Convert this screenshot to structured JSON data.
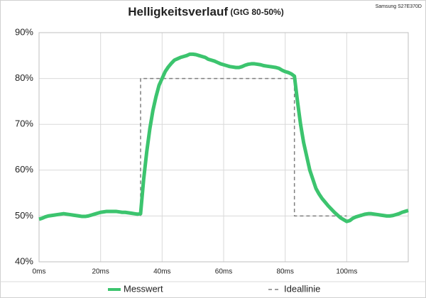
{
  "chart_data": {
    "type": "line",
    "title": "Helligkeitsverlauf",
    "title_suffix": "(GtG 80-50%)",
    "annotation": "Samsung S27E370D",
    "xlim": [
      0,
      120
    ],
    "xticks": [
      {
        "value": 0,
        "label": "0ms"
      },
      {
        "value": 20,
        "label": "20ms"
      },
      {
        "value": 40,
        "label": "40ms"
      },
      {
        "value": 60,
        "label": "60ms"
      },
      {
        "value": 80,
        "label": "80ms"
      },
      {
        "value": 100,
        "label": "100ms"
      }
    ],
    "ylim": [
      40,
      90
    ],
    "yticks": [
      {
        "value": 40,
        "label": "40%"
      },
      {
        "value": 50,
        "label": "50%"
      },
      {
        "value": 60,
        "label": "60%"
      },
      {
        "value": 70,
        "label": "70%"
      },
      {
        "value": 80,
        "label": "80%"
      },
      {
        "value": 90,
        "label": "90%"
      }
    ],
    "grid": true,
    "legend": "bottom",
    "series": [
      {
        "name": "Messwert",
        "color": "#3cc46e",
        "dashed": false,
        "x": [
          0,
          1,
          2,
          3,
          4,
          5,
          6,
          7,
          8,
          9,
          10,
          11,
          12,
          13,
          14,
          15,
          16,
          17,
          18,
          19,
          20,
          21,
          22,
          23,
          24,
          25,
          26,
          27,
          28,
          29,
          30,
          31,
          32,
          33,
          34,
          35,
          36,
          37,
          38,
          39,
          40,
          41,
          42,
          43,
          44,
          45,
          46,
          47,
          48,
          49,
          50,
          51,
          52,
          53,
          54,
          55,
          56,
          57,
          58,
          59,
          60,
          61,
          62,
          63,
          64,
          65,
          66,
          67,
          68,
          69,
          70,
          71,
          72,
          73,
          74,
          75,
          76,
          77,
          78,
          79,
          80,
          81,
          82,
          83,
          84,
          85,
          86,
          87,
          88,
          89,
          90,
          91,
          92,
          93,
          94,
          95,
          96,
          97,
          98,
          99,
          100,
          101,
          102,
          103,
          104,
          105,
          106,
          107,
          108,
          109,
          110,
          111,
          112,
          113,
          114,
          115,
          116,
          117,
          118,
          119,
          120
        ],
        "values": [
          49.3,
          49.5,
          49.8,
          50,
          50.1,
          50.2,
          50.3,
          50.4,
          50.5,
          50.4,
          50.3,
          50.2,
          50.1,
          50,
          49.9,
          49.9,
          50,
          50.2,
          50.4,
          50.6,
          50.8,
          50.9,
          51,
          51,
          51,
          51,
          50.9,
          50.8,
          50.8,
          50.7,
          50.6,
          50.5,
          50.4,
          50.5,
          58,
          64,
          69,
          73,
          76,
          78.5,
          80,
          81.5,
          82.5,
          83.3,
          84,
          84.3,
          84.6,
          84.8,
          85,
          85.3,
          85.3,
          85.2,
          85,
          84.8,
          84.6,
          84.2,
          84,
          83.8,
          83.5,
          83.2,
          83,
          82.8,
          82.6,
          82.5,
          82.4,
          82.4,
          82.6,
          82.9,
          83.1,
          83.2,
          83.2,
          83.1,
          83,
          82.8,
          82.7,
          82.6,
          82.5,
          82.4,
          82.2,
          81.8,
          81.5,
          81.3,
          81,
          80.5,
          75,
          70,
          66,
          63,
          60,
          58,
          56,
          54.8,
          53.8,
          53,
          52.2,
          51.5,
          50.8,
          50.2,
          49.6,
          49.2,
          48.8,
          49,
          49.5,
          49.8,
          50,
          50.2,
          50.4,
          50.5,
          50.5,
          50.4,
          50.3,
          50.2,
          50.1,
          50,
          50,
          50.1,
          50.3,
          50.5,
          50.8,
          51,
          51.2
        ]
      },
      {
        "name": "Ideallinie",
        "color": "#7f7f7f",
        "dashed": true,
        "x": [
          33,
          33,
          83,
          83,
          100
        ],
        "values": [
          50,
          80,
          80,
          50,
          50
        ]
      }
    ]
  }
}
